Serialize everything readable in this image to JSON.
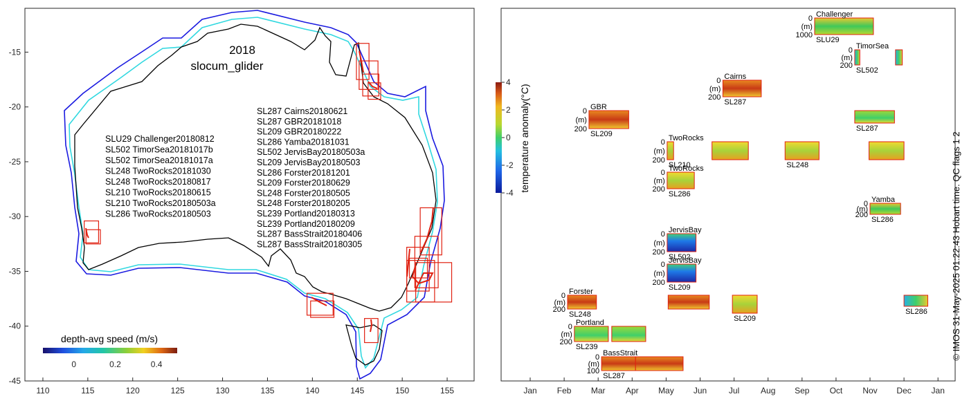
{
  "chart_data": [
    {
      "type": "map",
      "title": "2018",
      "subtitle": "slocum_glider",
      "xlim": [
        108,
        158
      ],
      "ylim": [
        -45,
        -11
      ],
      "xticks": [
        110,
        115,
        120,
        125,
        130,
        135,
        140,
        145,
        150,
        155
      ],
      "yticks": [
        -15,
        -20,
        -25,
        -30,
        -35,
        -40,
        -45
      ],
      "colorbar": {
        "label": "depth-avg speed (m/s)",
        "range": [
          -0.15,
          0.5
        ],
        "ticks": [
          0,
          0.2,
          0.4
        ],
        "tick_labels": [
          "0",
          "0.2",
          "0.4"
        ]
      },
      "deployment_list_left": [
        "SLU29 Challenger20180812",
        "SL502 TimorSea20181017b",
        "SL502 TimorSea20181017a",
        "SL248 TwoRocks20181030",
        "SL248 TwoRocks20180817",
        "SL210 TwoRocks20180615",
        "SL210 TwoRocks20180503a",
        "SL286 TwoRocks20180503"
      ],
      "deployment_list_right": [
        "SL287 Cairns20180621",
        "SL287 GBR20181018",
        "SL209 GBR20180222",
        "SL286 Yamba20181031",
        "SL502 JervisBay20180503a",
        "SL209 JervisBay20180503",
        "SL286 Forster20181201",
        "SL209 Forster20180629",
        "SL248 Forster20180505",
        "SL248 Forster20180205",
        "SL239 Portland20180313",
        "SL239 Portland20180209",
        "SL287 BassStrait20180406",
        "SL287 BassStrait20180305"
      ],
      "boxes_lonlat": [
        [
          114.6,
          116.2,
          -32.4,
          -30.4
        ],
        [
          114.8,
          116.4,
          -32.5,
          -31.2
        ],
        [
          144.9,
          146.3,
          -17.5,
          -14.2
        ],
        [
          145.2,
          147.3,
          -18.4,
          -15.8
        ],
        [
          145.6,
          147.4,
          -19.0,
          -17.0
        ],
        [
          146.2,
          147.6,
          -19.3,
          -17.8
        ],
        [
          139.4,
          142.3,
          -39.0,
          -37.0
        ],
        [
          139.8,
          142.4,
          -39.2,
          -37.7
        ],
        [
          145.8,
          147.3,
          -41.5,
          -39.3
        ],
        [
          150.5,
          153.0,
          -36.8,
          -32.8
        ],
        [
          151.4,
          154.0,
          -36.5,
          -31.8
        ],
        [
          152.0,
          154.4,
          -33.5,
          -29.2
        ],
        [
          150.5,
          153.6,
          -37.8,
          -34.0
        ],
        [
          151.5,
          155.5,
          -37.8,
          -34.2
        ],
        [
          150.8,
          152.8,
          -35.6,
          -33.8
        ]
      ]
    },
    {
      "type": "heatmap-timeline",
      "xlabel_months": [
        "Jan",
        "Feb",
        "Mar",
        "Apr",
        "May",
        "Jun",
        "Jul",
        "Aug",
        "Sep",
        "Oct",
        "Nov",
        "Dec",
        "Jan"
      ],
      "colorbar": {
        "label": "temperature anomaly(°C)",
        "range": [
          -4,
          4
        ],
        "ticks": [
          4,
          2,
          0,
          -2,
          -4
        ],
        "tick_labels": [
          "4",
          "2",
          "0",
          "-2",
          "-4"
        ]
      },
      "rows": [
        {
          "site": "Challenger",
          "glider": "SLU29",
          "depth_ticks": [
            "0",
            "(m)",
            "1000"
          ],
          "start_month": 8.37,
          "end_month": 10.1,
          "scheme": "warm-green"
        },
        {
          "site": "TimorSea",
          "glider": "SL502",
          "depth_ticks": [
            "0",
            "(m)",
            "200"
          ],
          "start_month": 9.55,
          "end_month": 9.7,
          "scheme": "mixed",
          "extra": [
            [
              10.75,
              10.95
            ]
          ]
        },
        {
          "site": "Cairns",
          "glider": "SL287",
          "depth_ticks": [
            "0",
            "(m)",
            "200"
          ],
          "start_month": 5.67,
          "end_month": 6.8,
          "scheme": "warm-red"
        },
        {
          "site": "GBR",
          "glider": "SL209",
          "depth_ticks": [
            "0",
            "(m)",
            "200"
          ],
          "start_month": 1.73,
          "end_month": 2.9,
          "scheme": "warm-red"
        },
        {
          "site": "",
          "glider": "SL287",
          "depth_ticks": [],
          "start_month": 9.55,
          "end_month": 10.72,
          "scheme": "green"
        },
        {
          "site": "TwoRocks",
          "glider": "SL210",
          "depth_ticks": [
            "0",
            "(m)",
            "200"
          ],
          "start_month": 4.03,
          "end_month": 4.22,
          "scheme": "warm",
          "extra": [
            [
              5.35,
              6.42
            ]
          ]
        },
        {
          "site": "",
          "glider": "SL248",
          "depth_ticks": [],
          "start_month": 7.5,
          "end_month": 8.5,
          "scheme": "warm",
          "extra": [
            [
              9.97,
              11.0
            ]
          ]
        },
        {
          "site": "TwoRocks",
          "glider": "SL286",
          "depth_ticks": [
            "0",
            "(m)",
            "200"
          ],
          "start_month": 4.03,
          "end_month": 4.83,
          "scheme": "warm"
        },
        {
          "site": "Yamba",
          "glider": "SL286",
          "depth_ticks": [
            "0",
            "(m)",
            "200"
          ],
          "start_month": 10.0,
          "end_month": 10.9,
          "scheme": "warm-green"
        },
        {
          "site": "JervisBay",
          "glider": "SL502",
          "depth_ticks": [
            "0",
            "(m)",
            "200"
          ],
          "start_month": 4.03,
          "end_month": 4.88,
          "scheme": "cold"
        },
        {
          "site": "JervisBay",
          "glider": "SL209",
          "depth_ticks": [
            "0",
            "(m)",
            "200"
          ],
          "start_month": 4.03,
          "end_month": 4.88,
          "scheme": "cold"
        },
        {
          "site": "Forster",
          "glider": "SL248",
          "depth_ticks": [
            "0",
            "(m)",
            "200"
          ],
          "start_month": 1.1,
          "end_month": 1.95,
          "scheme": "warm-red",
          "extra": [
            [
              4.06,
              5.27
            ]
          ]
        },
        {
          "site": "",
          "glider": "SL209",
          "depth_ticks": [],
          "start_month": 5.95,
          "end_month": 6.68,
          "scheme": "warm"
        },
        {
          "site": "",
          "glider": "SL286",
          "depth_ticks": [],
          "start_month": 11.0,
          "end_month": 11.7,
          "scheme": "mixed"
        },
        {
          "site": "Portland",
          "glider": "SL239",
          "depth_ticks": [
            "0",
            "(m)",
            "200"
          ],
          "start_month": 1.3,
          "end_month": 2.3,
          "scheme": "green",
          "extra": [
            [
              2.4,
              3.4
            ]
          ]
        },
        {
          "site": "BassStrait",
          "glider": "SL287",
          "depth_ticks": [
            "0",
            "(m)",
            "100"
          ],
          "start_month": 2.1,
          "end_month": 3.1,
          "scheme": "warm-red",
          "extra": [
            [
              3.1,
              4.5
            ]
          ]
        }
      ]
    }
  ],
  "credit": "© IMOS 31-May-2025 01:22:43 Hobart time. QC flags 1  2"
}
